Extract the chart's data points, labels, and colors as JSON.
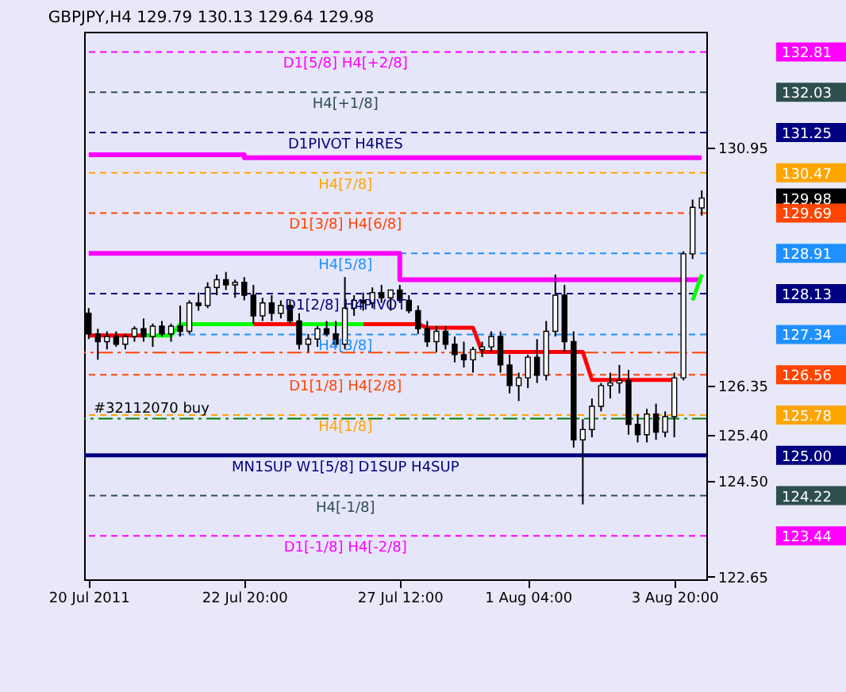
{
  "chart_data": {
    "type": "candlestick",
    "title": "GBPJPY,H4 129.79 130.13 129.64 129.98",
    "categories": [
      "20 Jul 2011",
      null,
      null,
      null,
      null,
      null,
      null,
      null,
      null,
      null,
      null,
      null,
      null,
      null,
      null,
      null,
      null,
      "22 Jul 20:00",
      null,
      null,
      null,
      null,
      null,
      null,
      null,
      null,
      null,
      null,
      null,
      null,
      null,
      null,
      null,
      null,
      "27 Jul 12:00",
      null,
      null,
      null,
      null,
      null,
      null,
      null,
      null,
      null,
      null,
      null,
      null,
      null,
      "1 Aug 04:00",
      null,
      null,
      null,
      null,
      null,
      null,
      null,
      null,
      null,
      null,
      null,
      null,
      null,
      null,
      null,
      "3 Aug 20:00",
      null,
      null,
      null
    ],
    "ohlc": [
      [
        127.75,
        127.85,
        127.25,
        127.35
      ],
      [
        127.35,
        127.45,
        126.85,
        127.2
      ],
      [
        127.2,
        127.4,
        127.05,
        127.3
      ],
      [
        127.3,
        127.4,
        127.1,
        127.15
      ],
      [
        127.15,
        127.35,
        127.05,
        127.3
      ],
      [
        127.3,
        127.5,
        127.2,
        127.45
      ],
      [
        127.45,
        127.65,
        127.2,
        127.3
      ],
      [
        127.3,
        127.55,
        127.1,
        127.5
      ],
      [
        127.5,
        127.6,
        127.3,
        127.35
      ],
      [
        127.35,
        127.55,
        127.2,
        127.5
      ],
      [
        127.5,
        127.9,
        127.3,
        127.4
      ],
      [
        127.4,
        128.0,
        127.35,
        127.95
      ],
      [
        127.95,
        128.15,
        127.8,
        127.9
      ],
      [
        127.9,
        128.35,
        127.85,
        128.25
      ],
      [
        128.25,
        128.5,
        128.1,
        128.4
      ],
      [
        128.4,
        128.55,
        128.2,
        128.3
      ],
      [
        128.3,
        128.4,
        128.05,
        128.35
      ],
      [
        128.35,
        128.45,
        128.0,
        128.1
      ],
      [
        128.1,
        128.3,
        127.55,
        127.7
      ],
      [
        127.7,
        128.05,
        127.6,
        127.95
      ],
      [
        127.95,
        128.1,
        127.6,
        127.75
      ],
      [
        127.75,
        128.0,
        127.65,
        127.9
      ],
      [
        127.9,
        128.0,
        127.55,
        127.6
      ],
      [
        127.6,
        127.75,
        127.05,
        127.15
      ],
      [
        127.15,
        127.35,
        127.0,
        127.25
      ],
      [
        127.25,
        127.5,
        127.1,
        127.45
      ],
      [
        127.45,
        127.6,
        127.3,
        127.35
      ],
      [
        127.35,
        127.6,
        127.1,
        127.15
      ],
      [
        127.15,
        128.45,
        127.05,
        127.85
      ],
      [
        127.85,
        128.1,
        127.7,
        128.0
      ],
      [
        128.0,
        128.15,
        127.8,
        127.95
      ],
      [
        127.95,
        128.25,
        127.85,
        128.15
      ],
      [
        128.15,
        128.3,
        127.95,
        128.05
      ],
      [
        128.05,
        128.2,
        127.8,
        128.2
      ],
      [
        128.2,
        128.3,
        127.95,
        128.0
      ],
      [
        128.0,
        128.1,
        127.75,
        127.8
      ],
      [
        127.8,
        127.9,
        127.35,
        127.45
      ],
      [
        127.45,
        127.6,
        127.1,
        127.2
      ],
      [
        127.2,
        127.5,
        127.0,
        127.4
      ],
      [
        127.4,
        127.5,
        127.05,
        127.15
      ],
      [
        127.15,
        127.3,
        126.8,
        126.95
      ],
      [
        126.95,
        127.2,
        126.7,
        126.85
      ],
      [
        126.85,
        127.1,
        126.6,
        127.05
      ],
      [
        127.05,
        127.2,
        126.9,
        127.1
      ],
      [
        127.1,
        127.4,
        127.0,
        127.3
      ],
      [
        127.3,
        127.4,
        126.6,
        126.75
      ],
      [
        126.75,
        126.95,
        126.2,
        126.35
      ],
      [
        126.35,
        126.6,
        126.05,
        126.5
      ],
      [
        126.5,
        126.95,
        126.3,
        126.9
      ],
      [
        126.9,
        127.25,
        126.4,
        126.55
      ],
      [
        126.55,
        127.6,
        126.45,
        127.4
      ],
      [
        127.4,
        128.5,
        127.3,
        128.1
      ],
      [
        128.1,
        128.3,
        127.0,
        127.2
      ],
      [
        127.2,
        127.4,
        125.15,
        125.3
      ],
      [
        125.3,
        125.7,
        124.05,
        125.5
      ],
      [
        125.5,
        126.1,
        125.35,
        125.95
      ],
      [
        125.95,
        126.4,
        125.85,
        126.35
      ],
      [
        126.35,
        126.6,
        126.1,
        126.4
      ],
      [
        126.4,
        126.75,
        126.2,
        126.45
      ],
      [
        126.45,
        126.65,
        125.4,
        125.6
      ],
      [
        125.6,
        125.8,
        125.25,
        125.4
      ],
      [
        125.4,
        125.9,
        125.25,
        125.8
      ],
      [
        125.8,
        126.0,
        125.3,
        125.45
      ],
      [
        125.45,
        125.85,
        125.35,
        125.75
      ],
      [
        125.75,
        126.6,
        125.35,
        126.5
      ],
      [
        126.5,
        128.95,
        126.45,
        128.9
      ],
      [
        128.9,
        129.95,
        128.8,
        129.8
      ],
      [
        129.79,
        130.13,
        129.64,
        129.98
      ]
    ],
    "series": [
      {
        "type": "step",
        "color": "#ff00ff",
        "values": [
          130.82,
          130.82,
          130.82,
          130.82,
          130.82,
          130.82,
          130.82,
          130.82,
          130.82,
          130.82,
          130.82,
          130.82,
          130.82,
          130.82,
          130.82,
          130.82,
          130.82,
          130.76,
          130.76,
          130.76,
          130.76,
          130.76,
          130.76,
          130.76,
          130.76,
          130.76,
          130.76,
          130.76,
          130.76,
          130.76,
          130.76,
          130.76,
          130.76,
          130.76,
          130.76,
          130.76,
          130.76,
          130.76,
          130.76,
          130.76,
          130.76,
          130.76,
          130.76,
          130.76,
          130.76,
          130.76,
          130.76,
          130.76,
          130.76,
          130.76,
          130.76,
          130.76,
          130.76,
          130.76,
          130.76,
          130.76,
          130.76,
          130.76,
          130.76,
          130.76,
          130.76,
          130.76,
          130.76,
          130.76,
          130.76,
          130.76,
          130.76,
          130.76
        ]
      },
      {
        "type": "step",
        "color": "#ff00ff",
        "values": [
          128.91,
          128.91,
          128.91,
          128.91,
          128.91,
          128.91,
          128.91,
          128.91,
          128.91,
          128.91,
          128.91,
          128.91,
          128.91,
          128.91,
          128.91,
          128.91,
          128.91,
          128.91,
          128.91,
          128.91,
          128.91,
          128.91,
          128.91,
          128.91,
          128.91,
          128.91,
          128.91,
          128.91,
          128.91,
          128.91,
          128.91,
          128.91,
          128.91,
          128.91,
          128.4,
          128.4,
          128.4,
          128.4,
          128.4,
          128.4,
          128.4,
          128.4,
          128.4,
          128.4,
          128.4,
          128.4,
          128.4,
          128.4,
          128.4,
          128.4,
          128.4,
          128.4,
          128.4,
          128.4,
          128.4,
          128.4,
          128.4,
          128.4,
          128.4,
          128.4,
          128.4,
          128.4,
          128.4,
          128.4,
          128.4,
          128.4,
          128.4,
          128.4
        ]
      },
      {
        "type": "line",
        "color": "#ff0000",
        "values": [
          127.32,
          127.32,
          127.32,
          127.32,
          127.32,
          127.32,
          127.32,
          null,
          null,
          null,
          null,
          null,
          null,
          null,
          null,
          null,
          null,
          null,
          127.54,
          127.54,
          127.54,
          127.54,
          127.54,
          127.54,
          null,
          null,
          null,
          null,
          null,
          null,
          127.54,
          127.54,
          127.54,
          127.54,
          127.54,
          127.54,
          127.54,
          127.47,
          127.47,
          127.47,
          127.47,
          127.47,
          127.47,
          127.0,
          127.0,
          127.0,
          127.0,
          127.0,
          127.0,
          127.0,
          127.0,
          127.0,
          127.0,
          127.0,
          127.0,
          126.46,
          126.46,
          126.46,
          126.46,
          126.46,
          126.46,
          126.46,
          126.46,
          126.46,
          126.46,
          null,
          null,
          null
        ]
      },
      {
        "type": "line",
        "color": "#00ff00",
        "values": [
          null,
          null,
          null,
          null,
          null,
          null,
          127.32,
          127.32,
          127.32,
          127.32,
          127.54,
          127.54,
          127.54,
          127.54,
          127.54,
          127.54,
          127.54,
          127.54,
          127.54,
          null,
          null,
          null,
          null,
          127.54,
          127.54,
          127.54,
          127.54,
          127.54,
          127.54,
          127.54,
          127.54,
          null,
          null,
          null,
          null,
          null,
          null,
          null,
          null,
          null,
          null,
          null,
          null,
          null,
          null,
          null,
          null,
          null,
          null,
          null,
          null,
          null,
          null,
          null,
          null,
          null,
          null,
          null,
          null,
          null,
          null,
          null,
          null,
          null,
          null,
          null,
          128.0,
          128.5
        ]
      }
    ],
    "ylim": [
      122.6,
      133.2
    ],
    "yticks": [
      122.65,
      {
        "value": 124.5,
        "label": "124.50"
      },
      {
        "value": 125.4,
        "label": "125.40"
      },
      126.35,
      130.95
    ],
    "y2lim": [
      122.6,
      133.2
    ],
    "y2ticks": [
      132.81,
      132.03,
      131.25,
      130.47,
      129.98,
      129.69,
      128.91,
      128.13,
      127.34,
      126.56,
      125.78,
      {
        "value": 125,
        "label": "125.00"
      },
      124.22,
      123.44
    ],
    "ref_lines": [
      {
        "axis": "y",
        "value": 132.81,
        "label": "D1[5/8] H4[+2/8]",
        "color": "#ff00ff",
        "line_style": "dashed"
      },
      {
        "axis": "y",
        "value": 132.03,
        "label": "H4[+1/8]",
        "color": "#2f4f4f",
        "line_style": "dashed"
      },
      {
        "axis": "y",
        "value": 131.25,
        "label": "D1PIVOT H4RES",
        "color": "#000080",
        "line_style": "dashed"
      },
      {
        "axis": "y",
        "value": 130.47,
        "label": "H4[7/8]",
        "color": "#ffa500",
        "line_style": "dashed"
      },
      {
        "axis": "y",
        "value": 129.69,
        "label": "D1[3/8] H4[6/8]",
        "color": "#ff4500",
        "line_style": "dashed"
      },
      {
        "axis": "y",
        "value": 128.91,
        "label": "H4[5/8]",
        "color": "#1e90ff",
        "line_style": "dashed"
      },
      {
        "axis": "y",
        "value": 128.13,
        "label": "D1[2/8] H4PIVOT",
        "color": "#000080",
        "line_style": "dashed"
      },
      {
        "axis": "y",
        "value": 127.34,
        "label": "H4[3/8]",
        "color": "#1e90ff",
        "line_style": "dashed"
      },
      {
        "axis": "y",
        "value": 126.99,
        "label": null,
        "color": "#ff4500",
        "line_style": "dotted"
      },
      {
        "axis": "y",
        "value": 126.56,
        "label": "D1[1/8] H4[2/8]",
        "color": "#ff4500",
        "line_style": "dashed"
      },
      {
        "axis": "y",
        "value": 125.78,
        "label": "H4[1/8]",
        "color": "#ffa500",
        "line_style": "dashed"
      },
      {
        "axis": "y",
        "value": 125.71,
        "label": "#32112070 buy",
        "color": "#008000",
        "line_style": "dotted"
      },
      {
        "axis": "y",
        "value": 125.0,
        "label": "MN1SUP W1[5/8] D1SUP H4SUP",
        "color": "#000080",
        "line_style": "solid"
      },
      {
        "axis": "y",
        "value": 124.22,
        "label": "H4[-1/8]",
        "color": "#2f4f4f",
        "line_style": "dashed"
      },
      {
        "axis": "y",
        "value": 123.44,
        "label": "D1[-1/8] H4[-2/8]",
        "color": "#ff00ff",
        "line_style": "dashed"
      }
    ]
  }
}
